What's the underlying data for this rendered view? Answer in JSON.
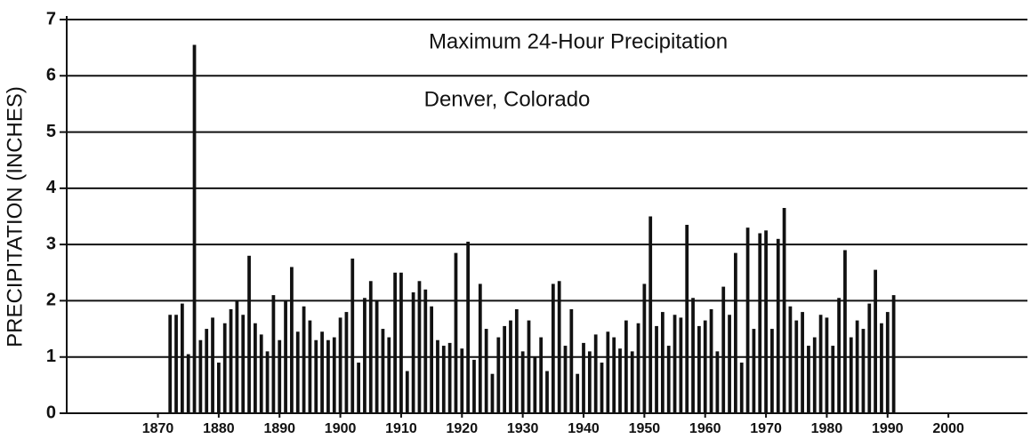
{
  "chart_data": {
    "type": "bar",
    "title": "Maximum 24-Hour Precipitation",
    "subtitle": "Denver, Colorado",
    "y_label": "PRECIPITATION (INCHES)",
    "x": [
      1872,
      1873,
      1874,
      1875,
      1876,
      1877,
      1878,
      1879,
      1880,
      1881,
      1882,
      1883,
      1884,
      1885,
      1886,
      1887,
      1888,
      1889,
      1890,
      1891,
      1892,
      1893,
      1894,
      1895,
      1896,
      1897,
      1898,
      1899,
      1900,
      1901,
      1902,
      1903,
      1904,
      1905,
      1906,
      1907,
      1908,
      1909,
      1910,
      1911,
      1912,
      1913,
      1914,
      1915,
      1916,
      1917,
      1918,
      1919,
      1920,
      1921,
      1922,
      1923,
      1924,
      1925,
      1926,
      1927,
      1928,
      1929,
      1930,
      1931,
      1932,
      1933,
      1934,
      1935,
      1936,
      1937,
      1938,
      1939,
      1940,
      1941,
      1942,
      1943,
      1944,
      1945,
      1946,
      1947,
      1948,
      1949,
      1950,
      1951,
      1952,
      1953,
      1954,
      1955,
      1956,
      1957,
      1958,
      1959,
      1960,
      1961,
      1962,
      1963,
      1964,
      1965,
      1966,
      1967,
      1968,
      1969,
      1970,
      1971,
      1972,
      1973,
      1974,
      1975,
      1976,
      1977,
      1978,
      1979,
      1980,
      1981,
      1982,
      1983,
      1984,
      1985,
      1986,
      1987,
      1988,
      1989,
      1990,
      1991
    ],
    "values": [
      1.75,
      1.75,
      1.95,
      1.05,
      6.55,
      1.3,
      1.5,
      1.7,
      0.9,
      1.6,
      1.85,
      2.0,
      1.75,
      2.8,
      1.6,
      1.4,
      1.1,
      2.1,
      1.3,
      2.0,
      2.6,
      1.45,
      1.9,
      1.65,
      1.3,
      1.45,
      1.3,
      1.35,
      1.7,
      1.8,
      2.75,
      0.9,
      2.05,
      2.35,
      2.0,
      1.5,
      1.35,
      2.5,
      2.5,
      0.75,
      2.15,
      2.35,
      2.2,
      1.9,
      1.3,
      1.2,
      1.25,
      2.85,
      1.15,
      3.05,
      0.95,
      2.3,
      1.5,
      0.7,
      1.35,
      1.55,
      1.65,
      1.85,
      1.1,
      1.65,
      1.0,
      1.35,
      0.75,
      2.3,
      2.35,
      1.2,
      1.85,
      0.7,
      1.25,
      1.1,
      1.4,
      0.9,
      1.45,
      1.35,
      1.15,
      1.65,
      1.1,
      1.6,
      2.3,
      3.5,
      1.55,
      1.8,
      1.2,
      1.75,
      1.7,
      3.35,
      2.05,
      1.55,
      1.65,
      1.85,
      1.1,
      2.25,
      1.75,
      2.85,
      0.9,
      3.3,
      1.5,
      3.2,
      3.25,
      1.5,
      3.1,
      3.65,
      1.9,
      1.65,
      1.8,
      1.2,
      1.35,
      1.75,
      1.7,
      1.2,
      2.05,
      2.9,
      1.35,
      1.65,
      1.5,
      1.95,
      2.55,
      1.6,
      1.8,
      2.1
    ],
    "color": "#111111",
    "xlim": [
      1855,
      2013
    ],
    "xticks": [
      1870,
      1880,
      1890,
      1900,
      1910,
      1920,
      1930,
      1940,
      1950,
      1960,
      1970,
      1980,
      1990,
      2000
    ],
    "ylim": [
      0,
      7
    ],
    "yticks": [
      0,
      1,
      2,
      3,
      4,
      5,
      6,
      7
    ],
    "grid": true
  }
}
